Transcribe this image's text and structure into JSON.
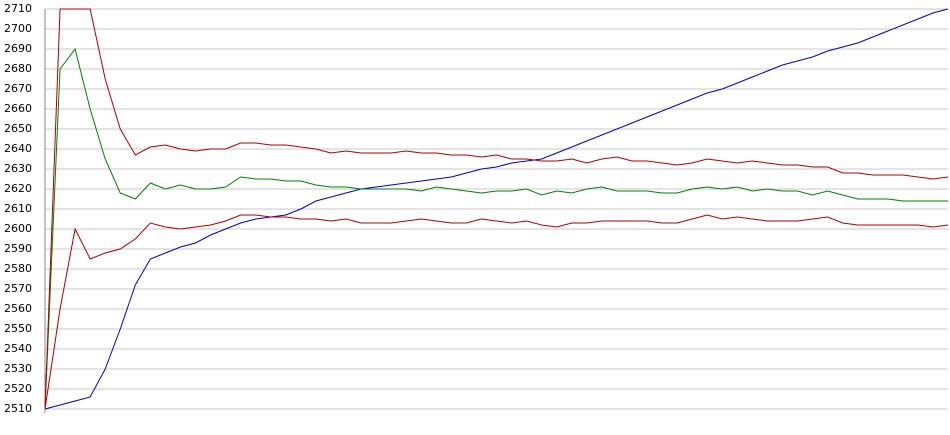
{
  "chart_data": {
    "type": "line",
    "categories": [
      null,
      null,
      null,
      null,
      null,
      null,
      null,
      null,
      null,
      null,
      null,
      null,
      null,
      null,
      null,
      null,
      null,
      null,
      null,
      null,
      null,
      null,
      null,
      null,
      null,
      null,
      null,
      null,
      null,
      null,
      null,
      null,
      null,
      null,
      null,
      null,
      null,
      null,
      null,
      null,
      null,
      null,
      null,
      null,
      null,
      null,
      null,
      null,
      null,
      null,
      null,
      null,
      null,
      null,
      null,
      null,
      null,
      null,
      null,
      null,
      null
    ],
    "ylim": [
      2510,
      2710
    ],
    "yticks": [
      2510,
      2520,
      2530,
      2540,
      2550,
      2560,
      2570,
      2580,
      2590,
      2600,
      2610,
      2620,
      2630,
      2640,
      2650,
      2660,
      2670,
      2680,
      2690,
      2700,
      2710
    ],
    "grid": true,
    "series": [
      {
        "color": "#0000cc",
        "values": [
          2510,
          2512,
          2514,
          2516,
          2530,
          2550,
          2572,
          2585,
          2588,
          2591,
          2593,
          2597,
          2600,
          2603,
          2605,
          2606,
          2607,
          2610,
          2614,
          2616,
          2618,
          2620,
          2621,
          2622,
          2623,
          2624,
          2625,
          2626,
          2628,
          2630,
          2631,
          2633,
          2634,
          2635,
          2638,
          2641,
          2644,
          2647,
          2650,
          2653,
          2656,
          2659,
          2662,
          2665,
          2668,
          2670,
          2673,
          2676,
          2679,
          2682,
          2684,
          2686,
          2689,
          2691,
          2693,
          2696,
          2699,
          2702,
          2705,
          2708,
          2710
        ]
      },
      {
        "color": "#008000",
        "values": [
          2510,
          2680,
          2690,
          2660,
          2635,
          2618,
          2615,
          2623,
          2620,
          2622,
          2620,
          2620,
          2621,
          2626,
          2625,
          2625,
          2624,
          2624,
          2622,
          2621,
          2621,
          2620,
          2620,
          2620,
          2620,
          2619,
          2621,
          2620,
          2619,
          2618,
          2619,
          2619,
          2620,
          2617,
          2619,
          2618,
          2620,
          2621,
          2619,
          2619,
          2619,
          2618,
          2618,
          2620,
          2621,
          2620,
          2621,
          2619,
          2620,
          2619,
          2619,
          2617,
          2619,
          2617,
          2615,
          2615,
          2615,
          2614,
          2614,
          2614,
          2614
        ]
      },
      {
        "color": "#b00000",
        "values": [
          2510,
          2710,
          2710,
          2710,
          2675,
          2650,
          2637,
          2641,
          2642,
          2640,
          2639,
          2640,
          2640,
          2643,
          2643,
          2642,
          2642,
          2641,
          2640,
          2638,
          2639,
          2638,
          2638,
          2638,
          2639,
          2638,
          2638,
          2637,
          2637,
          2636,
          2637,
          2635,
          2635,
          2634,
          2634,
          2635,
          2633,
          2635,
          2636,
          2634,
          2634,
          2633,
          2632,
          2633,
          2635,
          2634,
          2633,
          2634,
          2633,
          2632,
          2632,
          2631,
          2631,
          2628,
          2628,
          2627,
          2627,
          2627,
          2626,
          2625,
          2626
        ]
      },
      {
        "color": "#b00000",
        "values": [
          2510,
          2560,
          2600,
          2585,
          2588,
          2590,
          2595,
          2603,
          2601,
          2600,
          2601,
          2602,
          2604,
          2607,
          2607,
          2606,
          2606,
          2605,
          2605,
          2604,
          2605,
          2603,
          2603,
          2603,
          2604,
          2605,
          2604,
          2603,
          2603,
          2605,
          2604,
          2603,
          2604,
          2602,
          2601,
          2603,
          2603,
          2604,
          2604,
          2604,
          2604,
          2603,
          2603,
          2605,
          2607,
          2605,
          2606,
          2605,
          2604,
          2604,
          2604,
          2605,
          2606,
          2603,
          2602,
          2602,
          2602,
          2602,
          2602,
          2601,
          2602
        ]
      }
    ]
  }
}
